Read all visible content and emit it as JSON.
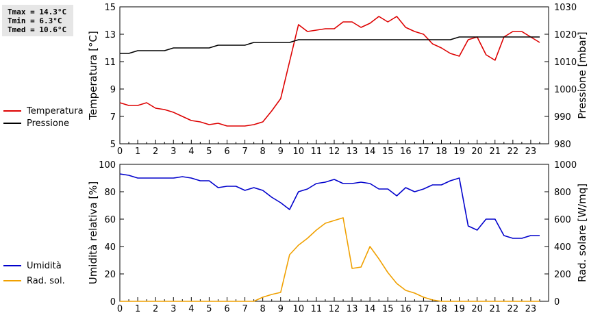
{
  "stats": {
    "lines": [
      "Tmax = 14.3°C",
      "Tmin =  6.3°C",
      "Tmed = 10.6°C"
    ]
  },
  "chart_data": [
    {
      "type": "line",
      "ylabel_left": "Temperatura [°C]",
      "ylabel_right": "Pressione [mbar]",
      "ylim_left": [
        5,
        15
      ],
      "ylim_right": [
        980,
        1030
      ],
      "xlim": [
        0,
        24
      ],
      "xticks": [
        "0",
        "1",
        "2",
        "3",
        "4",
        "5",
        "6",
        "7",
        "8",
        "9",
        "10",
        "11",
        "12",
        "13",
        "14",
        "15",
        "16",
        "17",
        "18",
        "19",
        "20",
        "21",
        "22",
        "23"
      ],
      "yticks_left": [
        "5",
        "7",
        "9",
        "11",
        "13",
        "15"
      ],
      "yticks_right": [
        "980",
        "990",
        "1000",
        "1010",
        "1020",
        "1030"
      ],
      "grid": false,
      "legend_position": "left",
      "series": [
        {
          "name": "Temperatura",
          "axis": "left",
          "color": "#dd0000",
          "x": [
            0,
            0.5,
            1,
            1.25,
            1.5,
            2,
            2.5,
            3,
            3.5,
            4,
            4.5,
            5,
            5.5,
            6,
            6.5,
            7,
            7.5,
            8,
            8.5,
            9,
            9.5,
            10,
            10.5,
            11,
            11.5,
            12,
            12.5,
            13,
            13.5,
            14,
            14.5,
            15,
            15.25,
            15.5,
            16,
            16.5,
            17,
            17.5,
            18,
            18.5,
            19,
            19.5,
            20,
            20.5,
            21,
            21.5,
            22,
            22.5,
            23,
            23.5
          ],
          "values": [
            8.0,
            7.8,
            7.8,
            7.9,
            8.0,
            7.6,
            7.5,
            7.3,
            7.0,
            6.7,
            6.6,
            6.4,
            6.5,
            6.3,
            6.3,
            6.3,
            6.4,
            6.6,
            7.4,
            8.3,
            11.0,
            13.7,
            13.2,
            13.3,
            13.4,
            13.4,
            13.9,
            13.9,
            13.5,
            13.8,
            14.3,
            13.9,
            14.1,
            14.3,
            13.5,
            13.2,
            13.0,
            12.3,
            12.0,
            11.6,
            11.4,
            12.6,
            12.8,
            11.5,
            11.1,
            12.8,
            13.2,
            13.2,
            12.8,
            12.4
          ]
        },
        {
          "name": "Pressione",
          "axis": "right",
          "color": "#000000",
          "x": [
            0,
            0.5,
            1,
            1.5,
            2,
            2.5,
            3,
            3.5,
            4,
            4.5,
            5,
            5.5,
            6,
            6.5,
            7,
            7.5,
            8,
            8.5,
            9,
            9.5,
            10,
            10.5,
            11,
            11.5,
            12,
            12.5,
            13,
            13.5,
            14,
            14.5,
            15,
            15.5,
            16,
            16.5,
            17,
            17.5,
            18,
            18.5,
            19,
            19.5,
            20,
            20.5,
            21,
            21.5,
            22,
            22.5,
            23,
            23.5
          ],
          "values": [
            1013,
            1013,
            1014,
            1014,
            1014,
            1014,
            1015,
            1015,
            1015,
            1015,
            1015,
            1016,
            1016,
            1016,
            1016,
            1017,
            1017,
            1017,
            1017,
            1017,
            1018,
            1018,
            1018,
            1018,
            1018,
            1018,
            1018,
            1018,
            1018,
            1018,
            1018,
            1018,
            1018,
            1018,
            1018,
            1018,
            1018,
            1018,
            1019,
            1019,
            1019,
            1019,
            1019,
            1019,
            1019,
            1019,
            1019,
            1019
          ]
        }
      ]
    },
    {
      "type": "line",
      "ylabel_left": "Umidità relativa [%]",
      "ylabel_right": "Rad. solare [W/mq]",
      "ylim_left": [
        0,
        100
      ],
      "ylim_right": [
        0,
        1000
      ],
      "xlim": [
        0,
        24
      ],
      "xticks": [
        "0",
        "1",
        "2",
        "3",
        "4",
        "5",
        "6",
        "7",
        "8",
        "9",
        "10",
        "11",
        "12",
        "13",
        "14",
        "15",
        "16",
        "17",
        "18",
        "19",
        "20",
        "21",
        "22",
        "23"
      ],
      "yticks_left": [
        "0",
        "20",
        "40",
        "60",
        "80",
        "100"
      ],
      "yticks_right": [
        "0",
        "200",
        "400",
        "600",
        "800",
        "1000"
      ],
      "grid": false,
      "legend_position": "left",
      "series": [
        {
          "name": "Umidità",
          "axis": "left",
          "color": "#0000cc",
          "x": [
            0,
            0.5,
            1,
            1.5,
            2,
            2.5,
            3,
            3.5,
            4,
            4.5,
            5,
            5.5,
            6,
            6.5,
            7,
            7.5,
            8,
            8.5,
            9,
            9.5,
            10,
            10.5,
            11,
            11.5,
            12,
            12.5,
            13,
            13.5,
            14,
            14.5,
            15,
            15.5,
            16,
            16.5,
            17,
            17.5,
            18,
            18.5,
            19,
            19.5,
            20,
            20.5,
            21,
            21.5,
            22,
            22.5,
            23,
            23.5
          ],
          "values": [
            93,
            92,
            90,
            90,
            90,
            90,
            90,
            91,
            90,
            88,
            88,
            83,
            84,
            84,
            81,
            83,
            81,
            76,
            72,
            67,
            80,
            82,
            86,
            87,
            89,
            86,
            86,
            87,
            86,
            82,
            82,
            77,
            83,
            80,
            82,
            85,
            85,
            88,
            90,
            55,
            52,
            60,
            60,
            48,
            46,
            46,
            48,
            48
          ]
        },
        {
          "name": "Rad. sol.",
          "axis": "right",
          "color": "#f0a000",
          "x": [
            0,
            1,
            2,
            3,
            4,
            5,
            6,
            7,
            7.5,
            8,
            8.5,
            9,
            9.5,
            10,
            10.5,
            11,
            11.5,
            12,
            12.5,
            13,
            13.5,
            14,
            14.5,
            15,
            15.5,
            16,
            16.5,
            17,
            17.5,
            18,
            19,
            20,
            21,
            22,
            23,
            23.5
          ],
          "values": [
            0,
            0,
            0,
            0,
            0,
            0,
            0,
            0,
            0,
            30,
            50,
            65,
            340,
            410,
            460,
            520,
            570,
            590,
            610,
            240,
            250,
            400,
            310,
            210,
            130,
            80,
            60,
            30,
            10,
            0,
            0,
            0,
            0,
            0,
            0,
            0
          ]
        }
      ]
    }
  ]
}
